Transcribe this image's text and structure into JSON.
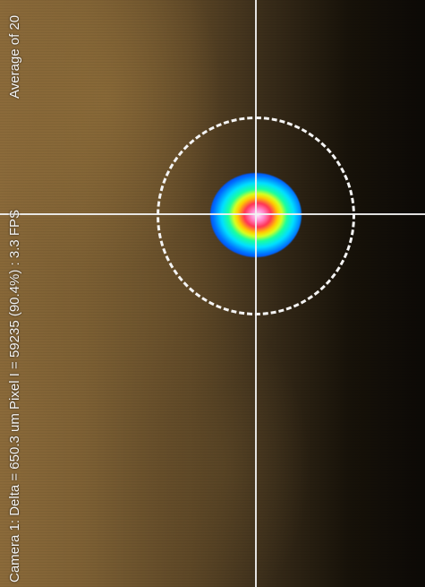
{
  "viewer": {
    "status_text": "Camera 1: Delta = 650.3 um Pixel I = 59235 (90.4%)  :  3.3 FPS",
    "average_label": "Average of 20"
  },
  "colors": {
    "crosshair": "#f2f2f2",
    "aperture": "#f4f4f4",
    "overlay_text": "#f4f4f4",
    "beam_palette": [
      "#0020e0",
      "#0070ff",
      "#00e0ff",
      "#19ff9e",
      "#d8ff20",
      "#ffcc00",
      "#ff3355",
      "#ff88cc",
      "#ffe6ff"
    ]
  }
}
